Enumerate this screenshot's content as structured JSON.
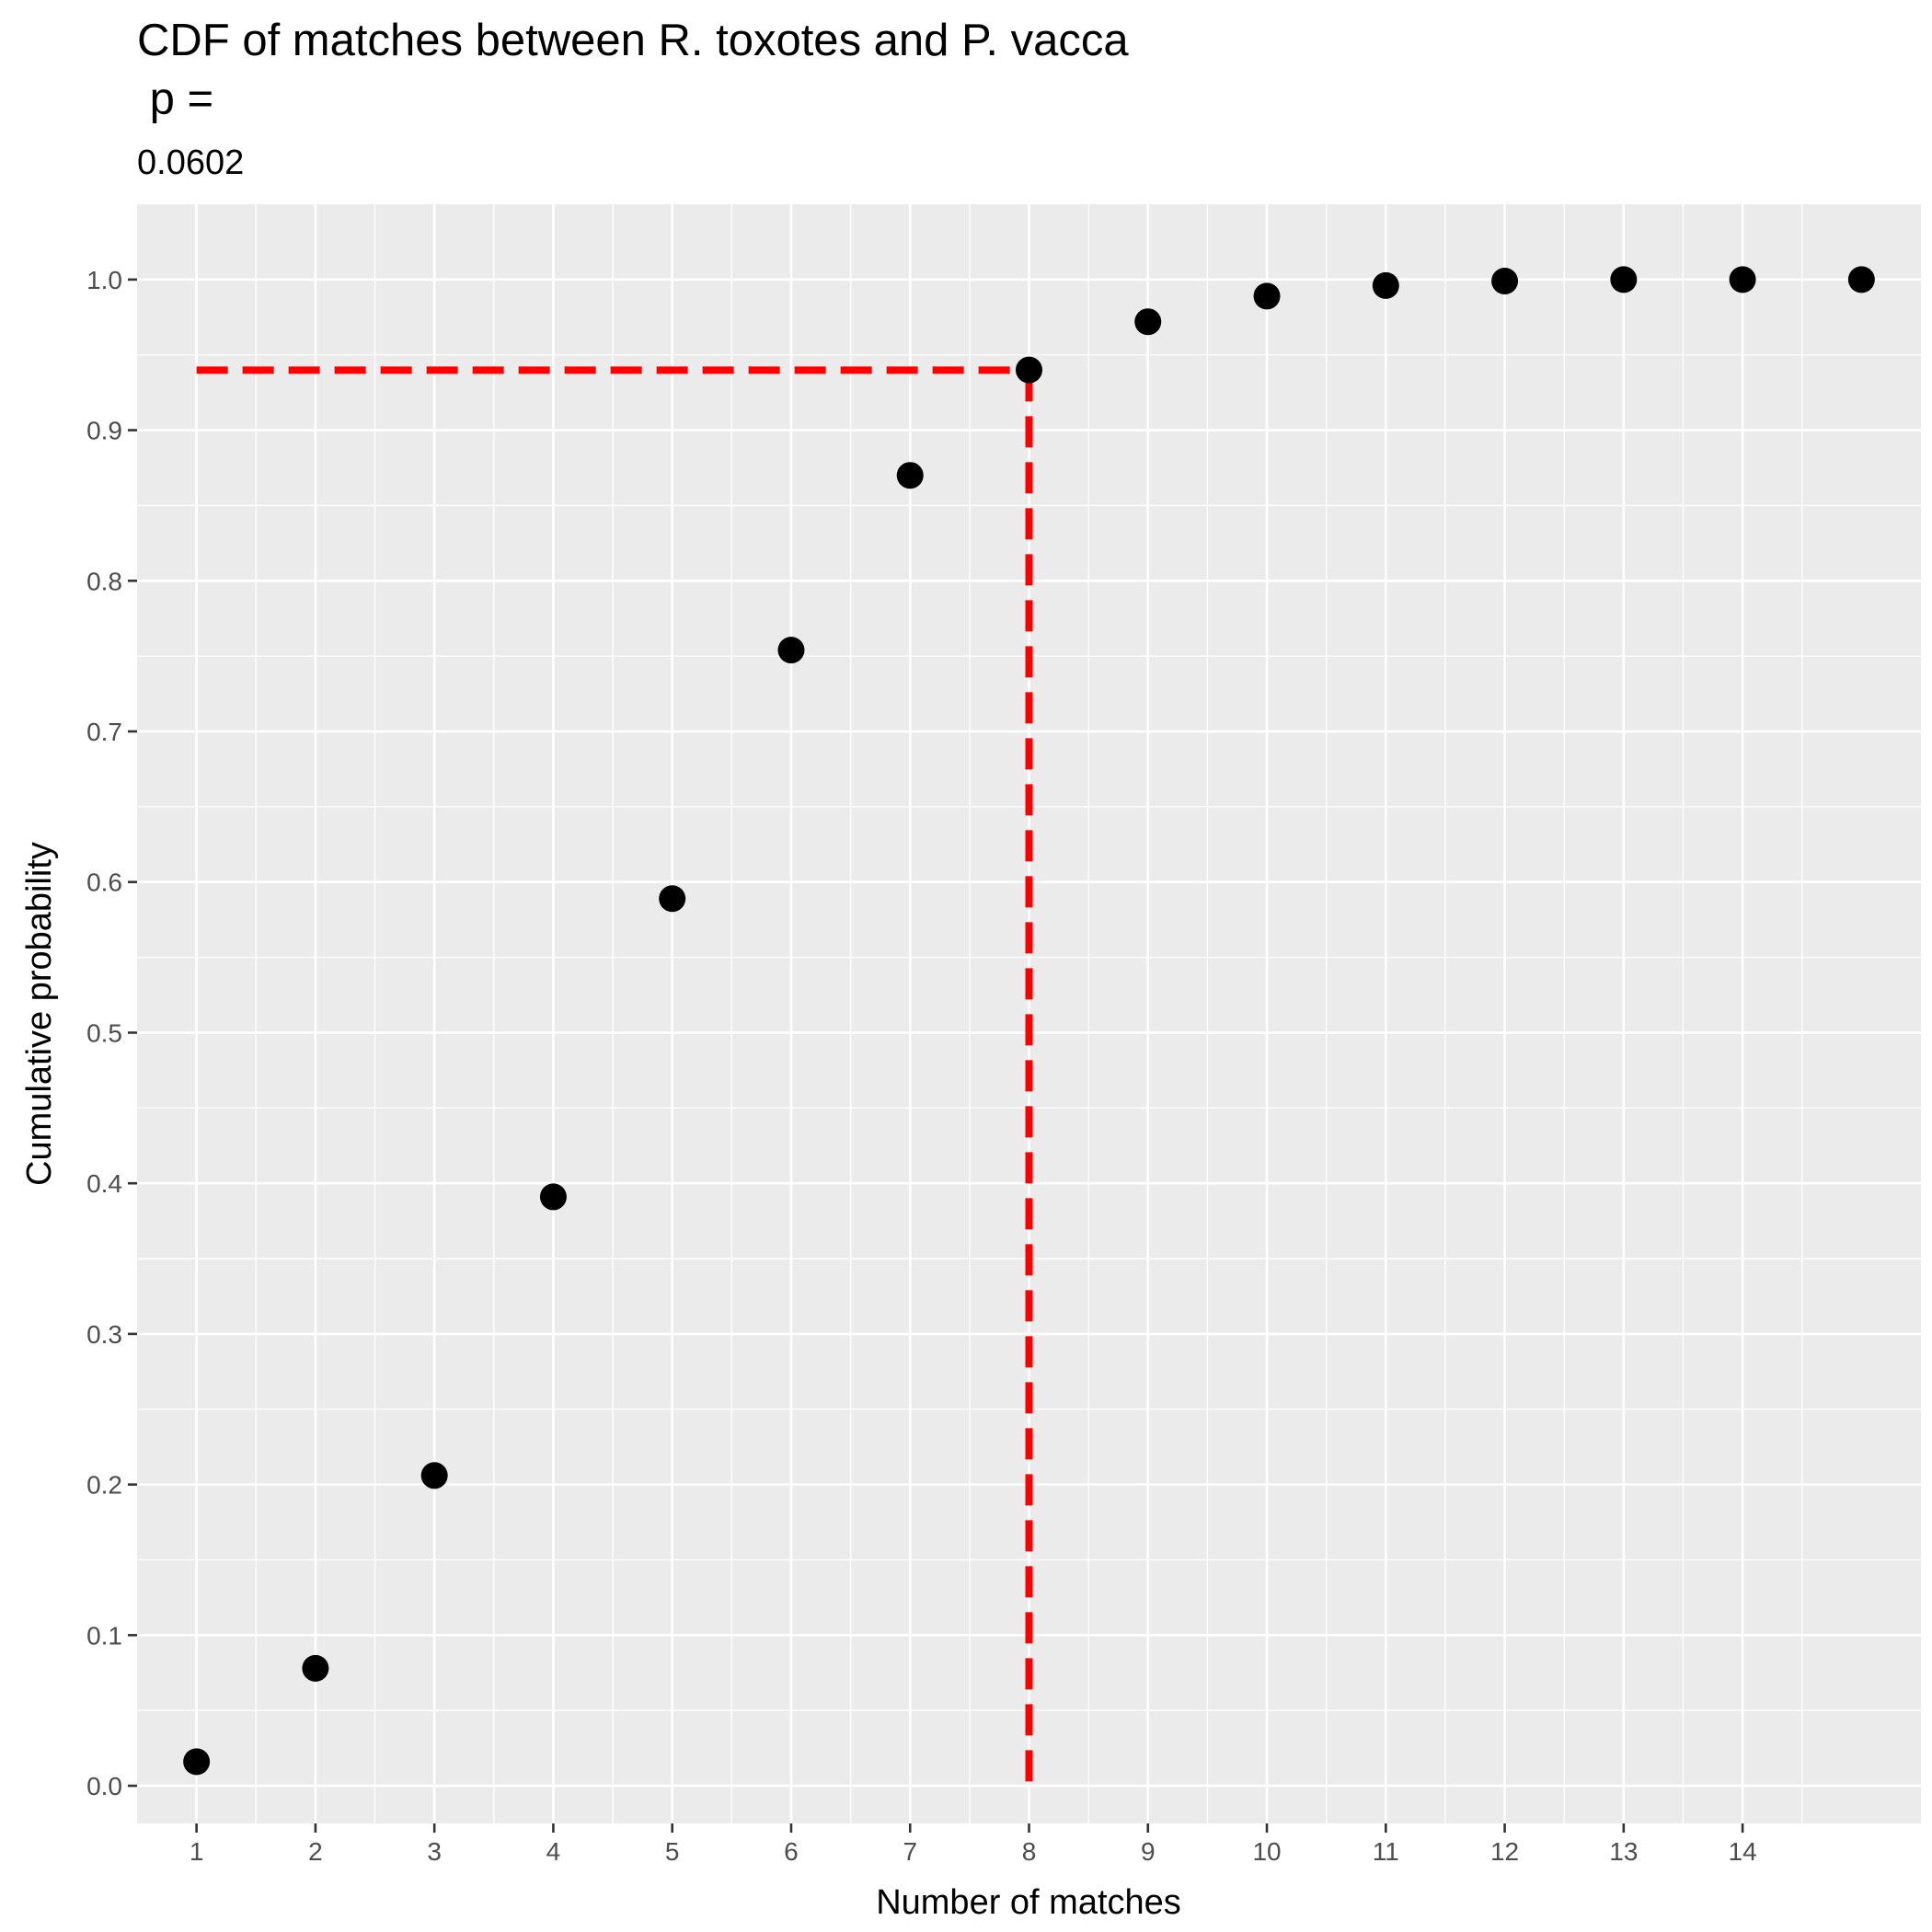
{
  "chart_data": {
    "type": "scatter",
    "title_line1": "CDF of matches between R. toxotes and P. vacca",
    "title_line2": " p =",
    "subtitle": "0.0602",
    "xlabel": "Number of matches",
    "ylabel": "Cumulative probability",
    "xlim": [
      0.5,
      15.5
    ],
    "ylim": [
      -0.025,
      1.05
    ],
    "x_ticks": [
      1,
      2,
      3,
      4,
      5,
      6,
      7,
      8,
      9,
      10,
      11,
      12,
      13,
      14
    ],
    "x_tick_labels": [
      "1",
      "2",
      "3",
      "4",
      "5",
      "6",
      "7",
      "8",
      "9",
      "10",
      "11",
      "12",
      "13",
      "14"
    ],
    "y_ticks": [
      0.0,
      0.1,
      0.2,
      0.3,
      0.4,
      0.5,
      0.6,
      0.7,
      0.8,
      0.9,
      1.0
    ],
    "y_tick_labels": [
      "0.0",
      "0.1",
      "0.2",
      "0.3",
      "0.4",
      "0.5",
      "0.6",
      "0.7",
      "0.8",
      "0.9",
      "1.0"
    ],
    "grid": true,
    "points": {
      "x": [
        1,
        2,
        3,
        4,
        5,
        6,
        7,
        8,
        9,
        10,
        11,
        12,
        13,
        14,
        15
      ],
      "y": [
        0.016,
        0.078,
        0.206,
        0.391,
        0.589,
        0.754,
        0.87,
        0.94,
        0.972,
        0.989,
        0.996,
        0.999,
        1.0,
        1.0,
        1.0
      ],
      "color": "#000000"
    },
    "reference_lines": {
      "color": "#ff0000",
      "x": 8,
      "y": 0.9398
    },
    "panel_background": "#ebebeb",
    "grid_color": "#ffffff"
  }
}
